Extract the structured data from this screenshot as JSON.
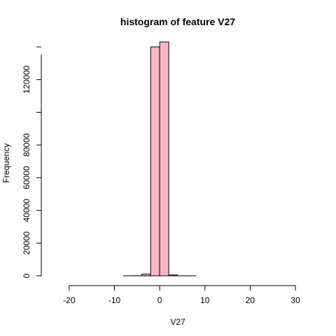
{
  "chart_data": {
    "type": "bar",
    "title": "histogram of feature V27",
    "xlabel": "V27",
    "ylabel": "Frequency",
    "bar_color": "#ffb6c1",
    "border_color": "#000000",
    "xlim": [
      -24,
      32
    ],
    "ylim": [
      0,
      140000
    ],
    "x_ticks": [
      -20,
      -10,
      0,
      10,
      20,
      30
    ],
    "x_tick_labels": [
      "-20",
      "-10",
      "0",
      "10",
      "20",
      "30"
    ],
    "y_ticks": [
      0,
      20000,
      40000,
      60000,
      80000,
      120000
    ],
    "y_tick_labels": [
      "0",
      "20000",
      "40000",
      "60000",
      "80000",
      "120000"
    ],
    "bins": [
      {
        "x0": -24,
        "x1": -22,
        "count": 0
      },
      {
        "x0": -22,
        "x1": -20,
        "count": 0
      },
      {
        "x0": -20,
        "x1": -18,
        "count": 0
      },
      {
        "x0": -18,
        "x1": -16,
        "count": 0
      },
      {
        "x0": -16,
        "x1": -14,
        "count": 0
      },
      {
        "x0": -14,
        "x1": -12,
        "count": 0
      },
      {
        "x0": -12,
        "x1": -10,
        "count": 0
      },
      {
        "x0": -10,
        "x1": -8,
        "count": 0
      },
      {
        "x0": -8,
        "x1": -6,
        "count": 10
      },
      {
        "x0": -6,
        "x1": -4,
        "count": 50
      },
      {
        "x0": -4,
        "x1": -2,
        "count": 1000
      },
      {
        "x0": -2,
        "x1": 0,
        "count": 140000
      },
      {
        "x0": 0,
        "x1": 2,
        "count": 143000
      },
      {
        "x0": 2,
        "x1": 4,
        "count": 500
      },
      {
        "x0": 4,
        "x1": 6,
        "count": 30
      },
      {
        "x0": 6,
        "x1": 8,
        "count": 5
      },
      {
        "x0": 8,
        "x1": 10,
        "count": 0
      },
      {
        "x0": 10,
        "x1": 12,
        "count": 0
      },
      {
        "x0": 12,
        "x1": 14,
        "count": 0
      },
      {
        "x0": 14,
        "x1": 16,
        "count": 0
      },
      {
        "x0": 16,
        "x1": 18,
        "count": 0
      },
      {
        "x0": 18,
        "x1": 20,
        "count": 0
      },
      {
        "x0": 20,
        "x1": 22,
        "count": 0
      },
      {
        "x0": 22,
        "x1": 24,
        "count": 0
      },
      {
        "x0": 24,
        "x1": 26,
        "count": 0
      },
      {
        "x0": 26,
        "x1": 28,
        "count": 0
      },
      {
        "x0": 28,
        "x1": 30,
        "count": 0
      },
      {
        "x0": 30,
        "x1": 32,
        "count": 0
      }
    ]
  }
}
